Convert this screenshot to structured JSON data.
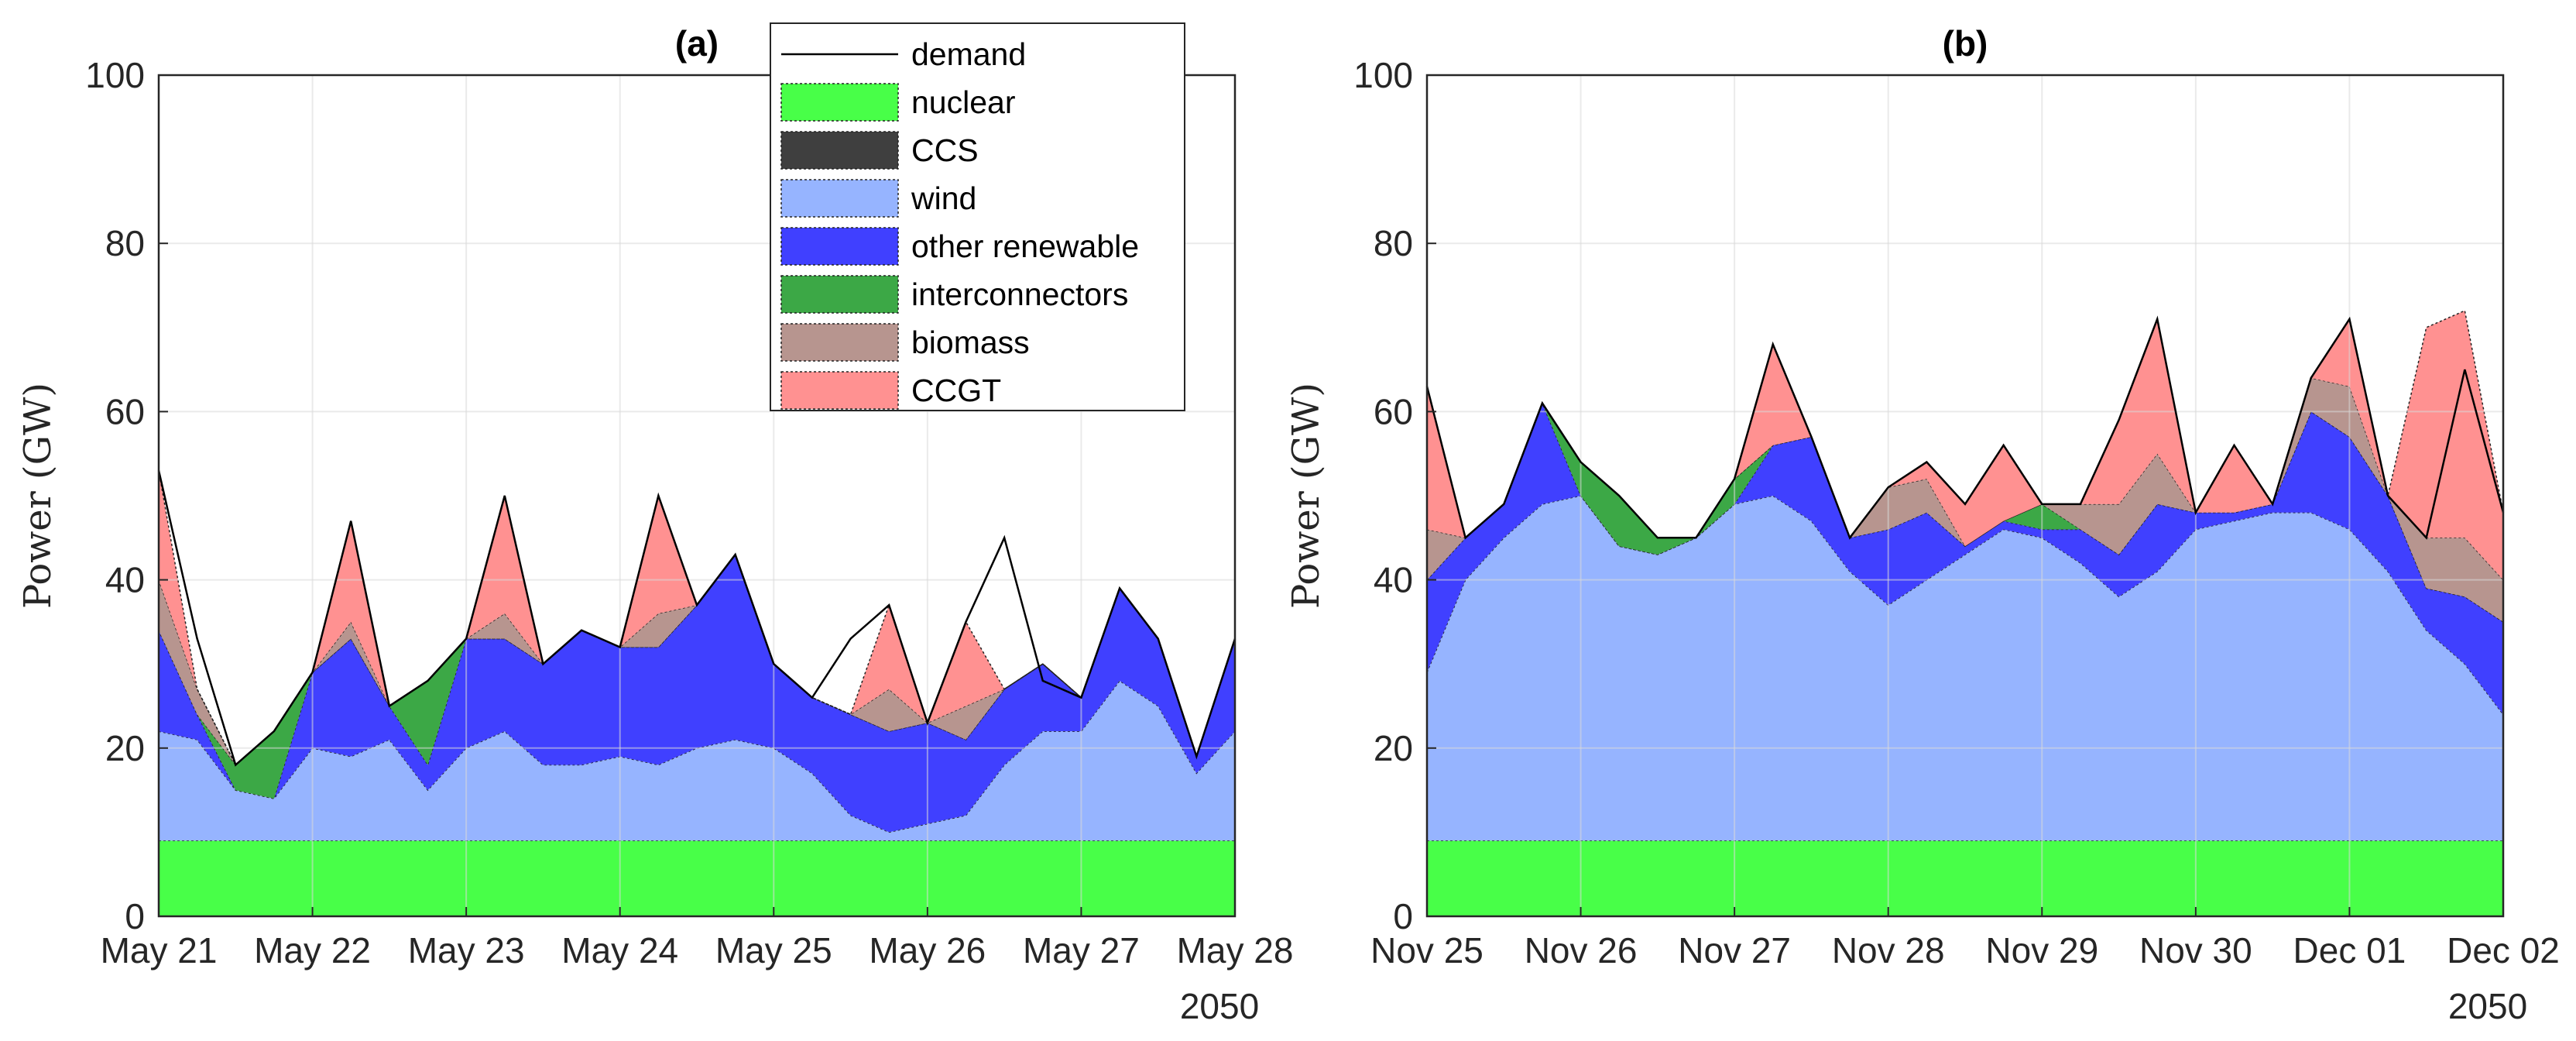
{
  "chart_data": [
    {
      "type": "area",
      "panel": "a",
      "title": "(a)",
      "xlabel": "",
      "ylabel": "Power (GW)",
      "ylim": [
        0,
        100
      ],
      "yticks": [
        "0",
        "20",
        "40",
        "60",
        "80",
        "100"
      ],
      "xlim_days": [
        0,
        7
      ],
      "xticks": [
        "May 21",
        "May 22",
        "May 23",
        "May 24",
        "May 25",
        "May 26",
        "May 27",
        "May 28"
      ],
      "year_label": "2050",
      "legend_position": "top-right",
      "x_days": [
        0,
        0.25,
        0.5,
        0.75,
        1,
        1.25,
        1.5,
        1.75,
        2,
        2.25,
        2.5,
        2.75,
        3,
        3.25,
        3.5,
        3.75,
        4,
        4.25,
        4.5,
        4.75,
        5,
        5.25,
        5.5,
        5.75,
        6,
        6.25,
        6.5,
        6.75,
        7
      ],
      "series": [
        {
          "name": "nuclear",
          "color": "#48ff48",
          "values": [
            9,
            9,
            9,
            9,
            9,
            9,
            9,
            9,
            9,
            9,
            9,
            9,
            9,
            9,
            9,
            9,
            9,
            9,
            9,
            9,
            9,
            9,
            9,
            9,
            9,
            9,
            9,
            9,
            9
          ]
        },
        {
          "name": "wind",
          "color": "#96b4ff",
          "values": [
            13,
            12,
            6,
            5,
            11,
            10,
            12,
            6,
            11,
            13,
            9,
            9,
            10,
            9,
            11,
            12,
            11,
            8,
            3,
            1,
            2,
            3,
            9,
            13,
            13,
            19,
            16,
            8,
            13
          ]
        },
        {
          "name": "other renewable",
          "color": "#4040ff",
          "values": [
            12,
            3,
            0,
            0,
            9,
            14,
            4,
            3,
            13,
            11,
            12,
            16,
            13,
            14,
            17,
            22,
            10,
            9,
            12,
            12,
            12,
            9,
            9,
            8,
            4,
            11,
            8,
            2,
            11
          ]
        },
        {
          "name": "interconnectors",
          "color": "#3ca846",
          "values": [
            0,
            0,
            3,
            8,
            0,
            0,
            0,
            10,
            0,
            0,
            0,
            0,
            0,
            0,
            0,
            0,
            0,
            0,
            0,
            0,
            0,
            0,
            0,
            0,
            0,
            0,
            0,
            0,
            0
          ]
        },
        {
          "name": "biomass",
          "color": "#b7958f",
          "values": [
            6,
            3,
            0,
            0,
            0,
            2,
            0,
            0,
            0,
            3,
            0,
            0,
            0,
            4,
            0,
            0,
            0,
            0,
            0,
            5,
            0,
            4,
            0,
            0,
            0,
            0,
            0,
            0,
            0
          ]
        },
        {
          "name": "CCGT",
          "color": "#ff9191",
          "values": [
            13,
            0,
            0,
            0,
            0,
            12,
            0,
            0,
            0,
            14,
            0,
            0,
            0,
            14,
            0,
            0,
            0,
            0,
            0,
            10,
            0,
            10,
            0,
            0,
            0,
            0,
            0,
            0,
            0
          ]
        },
        {
          "name": "CCS",
          "color": "#3f3f3f",
          "values": [
            0,
            0,
            0,
            0,
            0,
            0,
            0,
            0,
            0,
            0,
            0,
            0,
            0,
            0,
            0,
            0,
            0,
            0,
            0,
            0,
            0,
            0,
            0,
            0,
            0,
            0,
            0,
            0,
            0
          ]
        }
      ],
      "demand": {
        "name": "demand",
        "values": [
          53,
          33,
          18,
          22,
          29,
          47,
          25,
          28,
          33,
          50,
          30,
          34,
          32,
          50,
          37,
          43,
          30,
          26,
          33,
          37,
          23,
          35,
          45,
          28,
          26,
          39,
          33,
          19,
          33
        ]
      }
    },
    {
      "type": "area",
      "panel": "b",
      "title": "(b)",
      "xlabel": "",
      "ylabel": "Power (GW)",
      "ylim": [
        0,
        100
      ],
      "yticks": [
        "0",
        "20",
        "40",
        "60",
        "80",
        "100"
      ],
      "xlim_days": [
        0,
        7
      ],
      "xticks": [
        "Nov 25",
        "Nov 26",
        "Nov 27",
        "Nov 28",
        "Nov 29",
        "Nov 30",
        "Dec 01",
        "Dec 02"
      ],
      "year_label": "2050",
      "legend_position": "top-right",
      "x_days": [
        0,
        0.25,
        0.5,
        0.75,
        1,
        1.25,
        1.5,
        1.75,
        2,
        2.25,
        2.5,
        2.75,
        3,
        3.25,
        3.5,
        3.75,
        4,
        4.25,
        4.5,
        4.75,
        5,
        5.25,
        5.5,
        5.75,
        6,
        6.25,
        6.5,
        6.75,
        7
      ],
      "series": [
        {
          "name": "nuclear",
          "color": "#48ff48",
          "values": [
            9,
            9,
            9,
            9,
            9,
            9,
            9,
            9,
            9,
            9,
            9,
            9,
            9,
            9,
            9,
            9,
            9,
            9,
            9,
            9,
            9,
            9,
            9,
            9,
            9,
            9,
            9,
            9,
            9
          ]
        },
        {
          "name": "wind",
          "color": "#96b4ff",
          "values": [
            20,
            31,
            36,
            40,
            41,
            35,
            34,
            36,
            40,
            41,
            38,
            32,
            28,
            31,
            34,
            37,
            36,
            33,
            29,
            32,
            37,
            38,
            39,
            39,
            37,
            32,
            25,
            21,
            15
          ]
        },
        {
          "name": "other renewable",
          "color": "#4040ff",
          "values": [
            11,
            5,
            4,
            12,
            0,
            0,
            0,
            0,
            0,
            6,
            10,
            4,
            9,
            8,
            1,
            1,
            1,
            4,
            5,
            8,
            2,
            1,
            1,
            12,
            11,
            9,
            5,
            8,
            11
          ]
        },
        {
          "name": "interconnectors",
          "color": "#3ca846",
          "values": [
            0,
            0,
            0,
            0,
            4,
            6,
            2,
            0,
            3,
            0,
            0,
            0,
            0,
            0,
            0,
            0,
            3,
            0,
            0,
            0,
            0,
            0,
            0,
            0,
            0,
            0,
            0,
            0,
            0
          ]
        },
        {
          "name": "biomass",
          "color": "#b7958f",
          "values": [
            6,
            0,
            0,
            0,
            0,
            0,
            0,
            0,
            0,
            0,
            0,
            0,
            5,
            4,
            0,
            0,
            0,
            3,
            6,
            6,
            0,
            0,
            0,
            4,
            6,
            0,
            6,
            7,
            5
          ]
        },
        {
          "name": "CCGT",
          "color": "#ff9191",
          "values": [
            17,
            0,
            0,
            0,
            0,
            0,
            0,
            0,
            0,
            12,
            0,
            0,
            0,
            2,
            5,
            9,
            0,
            0,
            10,
            16,
            0,
            8,
            0,
            0,
            8,
            0,
            25,
            27,
            8
          ]
        },
        {
          "name": "CCS",
          "color": "#3f3f3f",
          "values": [
            0,
            0,
            0,
            0,
            0,
            0,
            0,
            0,
            0,
            0,
            0,
            0,
            0,
            0,
            0,
            0,
            0,
            0,
            0,
            0,
            0,
            0,
            0,
            0,
            0,
            0,
            0,
            0,
            0
          ]
        }
      ],
      "demand": {
        "name": "demand",
        "values": [
          63,
          45,
          49,
          61,
          54,
          50,
          45,
          45,
          52,
          68,
          57,
          45,
          51,
          54,
          49,
          56,
          49,
          49,
          59,
          71,
          48,
          56,
          49,
          64,
          71,
          50,
          45,
          65,
          48
        ]
      }
    }
  ],
  "legend": {
    "items": [
      {
        "name": "demand",
        "kind": "line",
        "color": "#000000"
      },
      {
        "name": "nuclear",
        "kind": "patch",
        "color": "#48ff48"
      },
      {
        "name": "CCS",
        "kind": "patch",
        "color": "#3f3f3f"
      },
      {
        "name": "wind",
        "kind": "patch",
        "color": "#96b4ff"
      },
      {
        "name": "other renewable",
        "kind": "patch",
        "color": "#4040ff"
      },
      {
        "name": "interconnectors",
        "kind": "patch",
        "color": "#3ca846"
      },
      {
        "name": "biomass",
        "kind": "patch",
        "color": "#b7958f"
      },
      {
        "name": "CCGT",
        "kind": "patch",
        "color": "#ff9191"
      }
    ]
  }
}
